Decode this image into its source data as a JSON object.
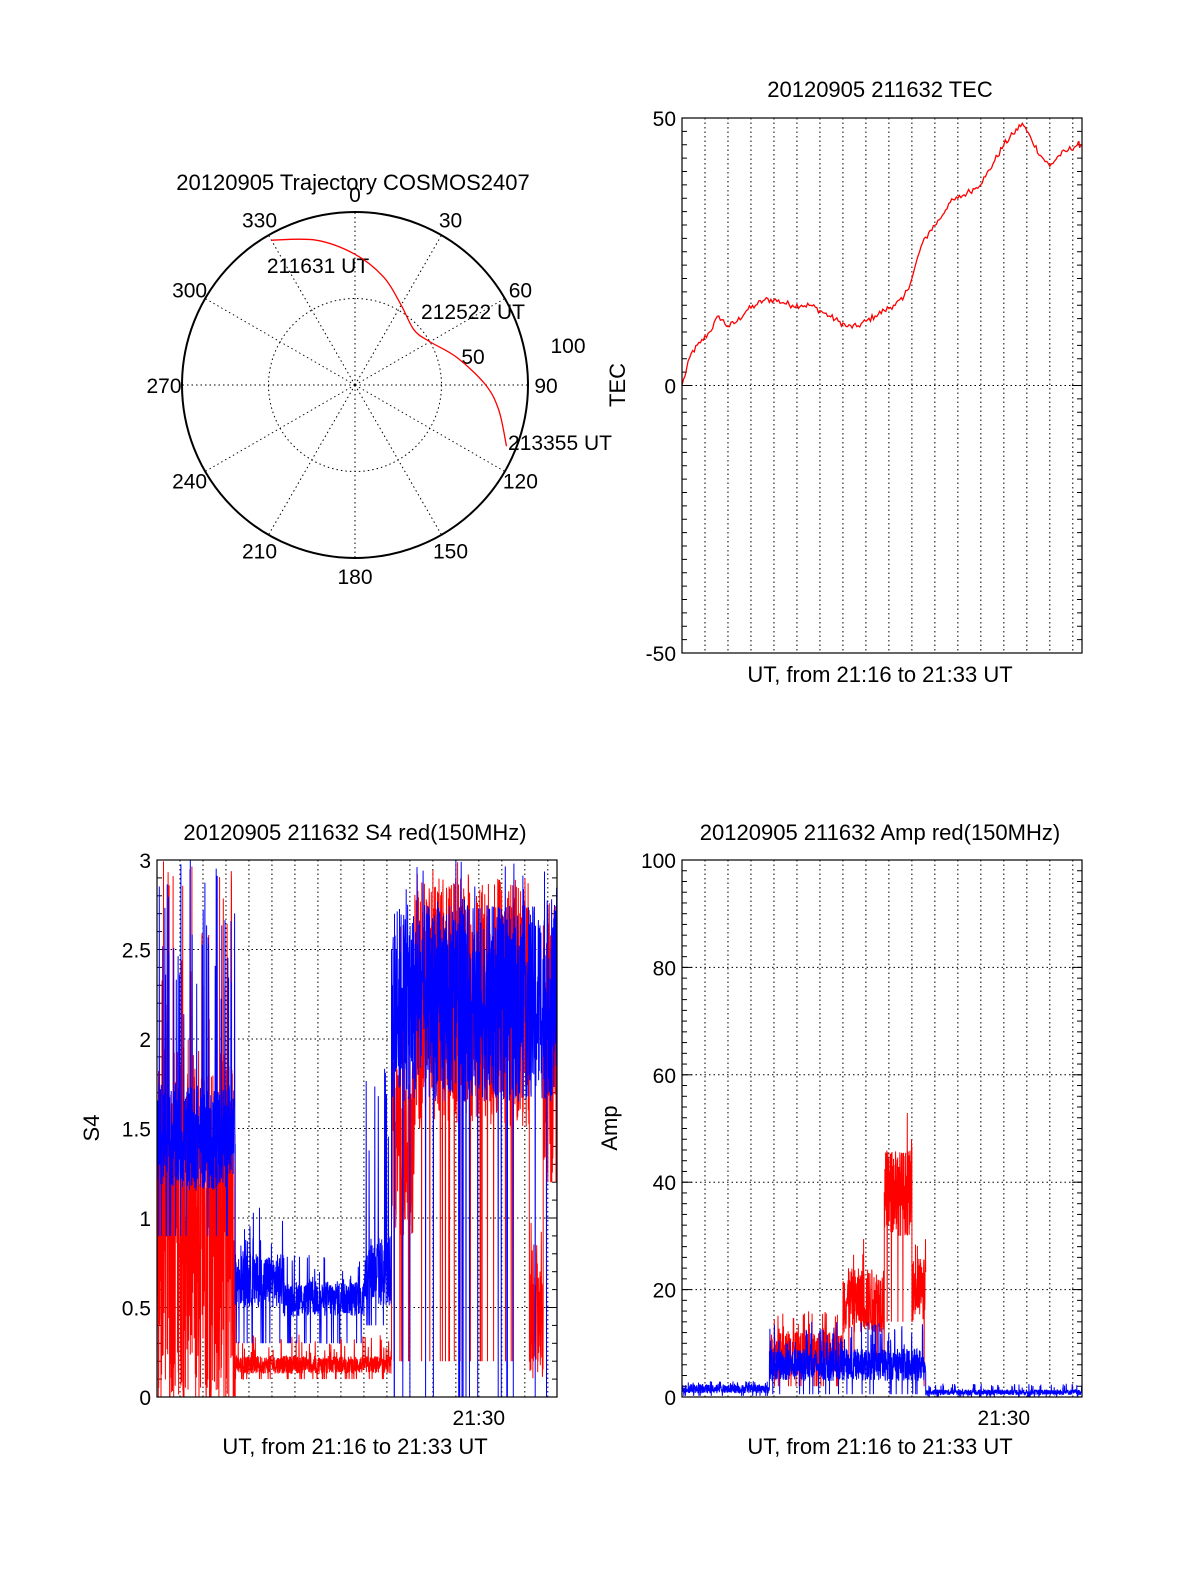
{
  "colors": {
    "red": "#ff0000",
    "blue": "#0000ff",
    "grid": "#000000"
  },
  "chart_data": [
    {
      "id": "trajectory",
      "type": "scatter",
      "projection": "polar",
      "title": "20120905 Trajectory COSMOS2407",
      "azimuth_labels": [
        "0",
        "30",
        "60",
        "90",
        "120",
        "150",
        "180",
        "210",
        "240",
        "270",
        "300",
        "330"
      ],
      "radial_labels": [
        "50",
        "100"
      ],
      "elevation_rings": [
        45,
        90
      ],
      "points": [
        {
          "label": "211631 UT",
          "azimuth": 330,
          "elevation": 3
        },
        {
          "label": "212522 UT",
          "azimuth": 47,
          "elevation": 48
        },
        {
          "label": "213355 UT",
          "azimuth": 112,
          "elevation": 5
        }
      ],
      "track": [
        [
          330,
          3
        ],
        [
          345,
          12
        ],
        [
          0,
          22
        ],
        [
          15,
          32
        ],
        [
          30,
          42
        ],
        [
          47,
          48
        ],
        [
          60,
          45
        ],
        [
          75,
          35
        ],
        [
          90,
          22
        ],
        [
          100,
          14
        ],
        [
          112,
          5
        ]
      ]
    },
    {
      "id": "tec",
      "type": "line",
      "title": "20120905 211632 TEC",
      "xlabel": "UT, from 21:16 to 21:33 UT",
      "ylabel": "TEC",
      "xlim": [
        0,
        17.4
      ],
      "ylim": [
        -50,
        50
      ],
      "yticks": [
        "50",
        "0",
        "-50"
      ],
      "ytick_values": [
        50,
        0,
        -50
      ],
      "x_grid_step": 1,
      "series": [
        {
          "color": "red",
          "x": [
            0,
            0.4,
            0.8,
            1.2,
            1.6,
            2.0,
            2.4,
            2.8,
            3.2,
            3.6,
            4.0,
            4.4,
            4.8,
            5.2,
            5.6,
            6.0,
            6.4,
            6.8,
            7.2,
            7.6,
            8.0,
            8.4,
            8.8,
            9.2,
            9.6,
            10.0,
            10.4,
            10.8,
            11.2,
            11.6,
            12.0,
            12.4,
            12.8,
            13.2,
            13.6,
            14.0,
            14.4,
            14.8,
            15.2,
            15.6,
            16.0,
            16.4,
            16.8,
            17.2,
            17.4
          ],
          "y": [
            0,
            6,
            8,
            10,
            13,
            11,
            12,
            14,
            15,
            16,
            16,
            15.5,
            15,
            15,
            15,
            14,
            13,
            12,
            11,
            11,
            12,
            13,
            14,
            15,
            16,
            20,
            26,
            29,
            31,
            34,
            35,
            36,
            37,
            39,
            42,
            45,
            47,
            49,
            46,
            43,
            41,
            43,
            44,
            45,
            45
          ]
        }
      ]
    },
    {
      "id": "s4",
      "type": "line",
      "title": "20120905 211632 S4 red(150MHz)",
      "xlabel": "UT, from 21:16 to 21:33 UT",
      "ylabel": "S4",
      "xtick_label": "21:30",
      "xtick_value": 14,
      "xlim": [
        0,
        17.4
      ],
      "ylim": [
        0,
        3
      ],
      "yticks": [
        "0",
        "0.5",
        "1",
        "1.5",
        "2",
        "2.5",
        "3"
      ],
      "ytick_values": [
        0,
        0.5,
        1,
        1.5,
        2,
        2.5,
        3
      ],
      "series": [
        {
          "color": "red",
          "segments": [
            {
              "x0": 0,
              "x1": 3.4,
              "base": 1.0,
              "noise": 1.0,
              "spike": 3.0,
              "floor": 0
            },
            {
              "x0": 3.4,
              "x1": 10.2,
              "base": 0.18,
              "noise": 0.05,
              "spike": 0.35,
              "floor": 0.1
            },
            {
              "x0": 10.2,
              "x1": 11.2,
              "base": 1.4,
              "noise": 0.5,
              "spike": 3.0,
              "floor": 0.2
            },
            {
              "x0": 11.2,
              "x1": 16.2,
              "base": 2.2,
              "noise": 0.7,
              "spike": 3.0,
              "floor": 0.2
            },
            {
              "x0": 16.2,
              "x1": 16.8,
              "base": 0.4,
              "noise": 0.3,
              "spike": 1.0,
              "floor": 0.2
            },
            {
              "x0": 16.8,
              "x1": 17.4,
              "base": 2.0,
              "noise": 0.8,
              "spike": 3.0,
              "floor": 1.2
            }
          ]
        },
        {
          "color": "blue",
          "segments": [
            {
              "x0": 0,
              "x1": 3.4,
              "base": 1.45,
              "noise": 0.3,
              "spike": 3.0,
              "floor": 0.9
            },
            {
              "x0": 3.4,
              "x1": 5.5,
              "base": 0.65,
              "noise": 0.15,
              "spike": 1.1,
              "floor": 0.3
            },
            {
              "x0": 5.5,
              "x1": 9.0,
              "base": 0.55,
              "noise": 0.1,
              "spike": 0.8,
              "floor": 0.3
            },
            {
              "x0": 9.0,
              "x1": 10.2,
              "base": 0.7,
              "noise": 0.2,
              "spike": 1.95,
              "floor": 0.4
            },
            {
              "x0": 10.2,
              "x1": 17.4,
              "base": 2.2,
              "noise": 0.55,
              "spike": 3.0,
              "floor": 0
            }
          ]
        }
      ]
    },
    {
      "id": "amp",
      "type": "line",
      "title": "20120905 211632 Amp red(150MHz)",
      "xlabel": "UT, from 21:16 to 21:33 UT",
      "ylabel": "Amp",
      "xtick_label": "21:30",
      "xtick_value": 14,
      "xlim": [
        0,
        17.4
      ],
      "ylim": [
        0,
        100
      ],
      "yticks": [
        "0",
        "20",
        "40",
        "60",
        "80",
        "100"
      ],
      "ytick_values": [
        0,
        20,
        40,
        60,
        80,
        100
      ],
      "series": [
        {
          "color": "red",
          "segments": [
            {
              "x0": 3.8,
              "x1": 7.0,
              "base": 8,
              "noise": 4,
              "spike": 16,
              "floor": 2
            },
            {
              "x0": 7.0,
              "x1": 8.8,
              "base": 18,
              "noise": 6,
              "spike": 30,
              "floor": 6
            },
            {
              "x0": 8.8,
              "x1": 10.0,
              "base": 38,
              "noise": 8,
              "spike": 53,
              "floor": 14
            },
            {
              "x0": 10.0,
              "x1": 10.6,
              "base": 20,
              "noise": 6,
              "spike": 30,
              "floor": 2
            }
          ]
        },
        {
          "color": "blue",
          "segments": [
            {
              "x0": 0,
              "x1": 3.8,
              "base": 1.5,
              "noise": 0.8,
              "spike": 3,
              "floor": 0.2
            },
            {
              "x0": 3.8,
              "x1": 10.6,
              "base": 6,
              "noise": 3,
              "spike": 14,
              "floor": 0.5
            },
            {
              "x0": 10.6,
              "x1": 17.4,
              "base": 0.9,
              "noise": 0.5,
              "spike": 2.5,
              "floor": 0.1
            }
          ]
        }
      ]
    }
  ]
}
